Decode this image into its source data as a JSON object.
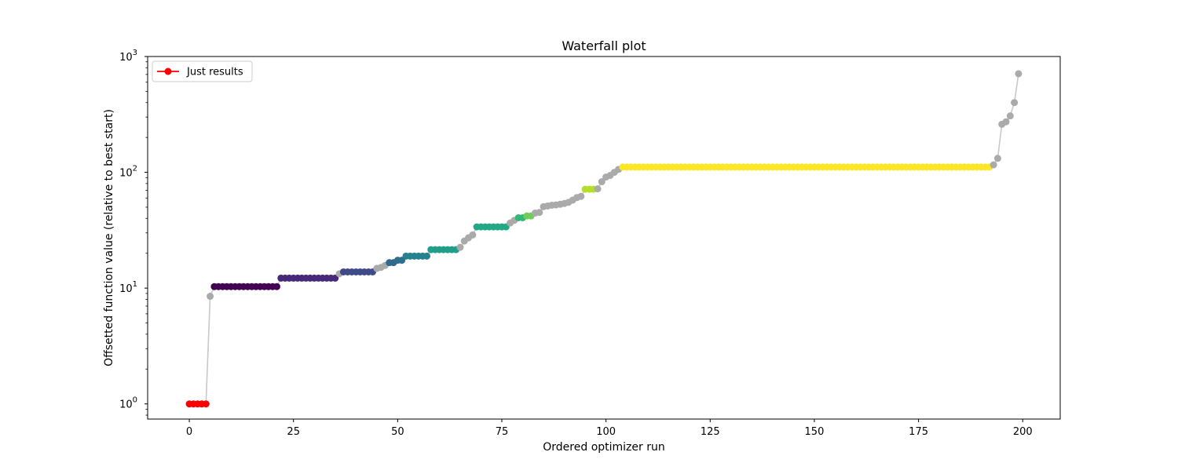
{
  "chart_data": {
    "type": "scatter",
    "title": "Waterfall plot",
    "xlabel": "Ordered optimizer run",
    "ylabel": "Offsetted function value (relative to best start)",
    "xlim": [
      -10,
      209
    ],
    "ylim": [
      0.74,
      1000
    ],
    "yscale": "log",
    "grid": false,
    "legend": {
      "position": "top-left",
      "entries": [
        {
          "label": "Just results",
          "color": "#ff0000"
        }
      ]
    },
    "x_ticks": [
      0,
      25,
      50,
      75,
      100,
      125,
      150,
      175,
      200
    ],
    "x_tick_labels": [
      "0",
      "25",
      "50",
      "75",
      "100",
      "125",
      "150",
      "175",
      "200"
    ],
    "y_ticks": [
      {
        "value": 1,
        "base": "10",
        "exp": "0"
      },
      {
        "value": 10,
        "base": "10",
        "exp": "1"
      },
      {
        "value": 100,
        "base": "10",
        "exp": "2"
      },
      {
        "value": 1000,
        "base": "10",
        "exp": "3"
      }
    ],
    "connector_color": "#c8c8c8",
    "unclustered_color": "#aaaaaa",
    "clusters": [
      {
        "x_start": 0,
        "x_end": 4,
        "y": 1.0,
        "color": "#ff0000"
      },
      {
        "x_start": 6,
        "x_end": 21,
        "y": 10.3,
        "color": "#440154"
      },
      {
        "x_start": 22,
        "x_end": 35,
        "y": 12.2,
        "color": "#482878"
      },
      {
        "x_start": 37,
        "x_end": 44,
        "y": 13.8,
        "color": "#3e4a89"
      },
      {
        "x_start": 48,
        "x_end": 49,
        "y": 16.6,
        "color": "#31688e"
      },
      {
        "x_start": 50,
        "x_end": 51,
        "y": 17.4,
        "color": "#2f6f8e"
      },
      {
        "x_start": 52,
        "x_end": 57,
        "y": 18.9,
        "color": "#26828e"
      },
      {
        "x_start": 58,
        "x_end": 64,
        "y": 21.5,
        "color": "#1f9e89"
      },
      {
        "x_start": 69,
        "x_end": 76,
        "y": 33.8,
        "color": "#22a884"
      },
      {
        "x_start": 79,
        "x_end": 80,
        "y": 40.5,
        "color": "#35b779"
      },
      {
        "x_start": 81,
        "x_end": 82,
        "y": 42.0,
        "color": "#6ece58"
      },
      {
        "x_start": 95,
        "x_end": 97,
        "y": 71.5,
        "color": "#b5de2b"
      },
      {
        "x_start": 104,
        "x_end": 192,
        "y": 111.0,
        "color": "#fde725"
      }
    ],
    "unclustered_points": [
      {
        "x": 5,
        "y": 8.5
      },
      {
        "x": 36,
        "y": 13.3
      },
      {
        "x": 45,
        "y": 14.8
      },
      {
        "x": 46,
        "y": 15.1
      },
      {
        "x": 47,
        "y": 15.7
      },
      {
        "x": 65,
        "y": 22.5
      },
      {
        "x": 66,
        "y": 25.5
      },
      {
        "x": 67,
        "y": 27.2
      },
      {
        "x": 68,
        "y": 28.8
      },
      {
        "x": 77,
        "y": 36.5
      },
      {
        "x": 78,
        "y": 38.5
      },
      {
        "x": 83,
        "y": 44.5
      },
      {
        "x": 84,
        "y": 45.0
      },
      {
        "x": 85,
        "y": 50.5
      },
      {
        "x": 86,
        "y": 51.2
      },
      {
        "x": 87,
        "y": 52.0
      },
      {
        "x": 88,
        "y": 52.3
      },
      {
        "x": 89,
        "y": 53.0
      },
      {
        "x": 90,
        "y": 53.8
      },
      {
        "x": 91,
        "y": 55.0
      },
      {
        "x": 92,
        "y": 57.5
      },
      {
        "x": 93,
        "y": 60.5
      },
      {
        "x": 94,
        "y": 62.0
      },
      {
        "x": 98,
        "y": 72.0
      },
      {
        "x": 99,
        "y": 83.0
      },
      {
        "x": 100,
        "y": 91.0
      },
      {
        "x": 101,
        "y": 94.0
      },
      {
        "x": 102,
        "y": 100.0
      },
      {
        "x": 103,
        "y": 106.0
      },
      {
        "x": 193,
        "y": 116.0
      },
      {
        "x": 194,
        "y": 132.0
      },
      {
        "x": 195,
        "y": 260.0
      },
      {
        "x": 196,
        "y": 273.0
      },
      {
        "x": 197,
        "y": 307.0
      },
      {
        "x": 198,
        "y": 400.0
      },
      {
        "x": 199,
        "y": 710.0
      }
    ]
  }
}
